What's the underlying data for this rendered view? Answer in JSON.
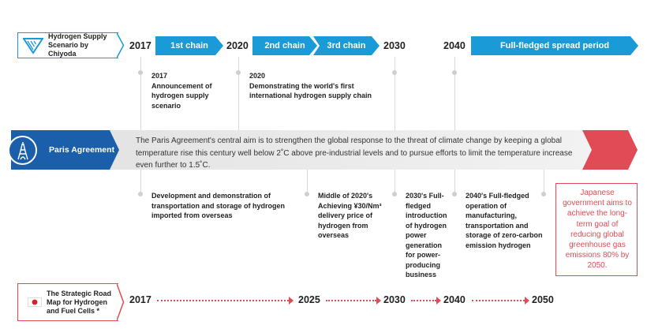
{
  "hydrogen_box": {
    "title": "Hydrogen Supply Scenario by Chiyoda"
  },
  "top_years": {
    "y2017": "2017",
    "y2020": "2020",
    "y2030": "2030",
    "y2040": "2040"
  },
  "chains": {
    "first": "1st chain",
    "second": "2nd chain",
    "third": "3rd chain",
    "spread": "Full-fledged spread period"
  },
  "top_notes": {
    "n2017": {
      "year": "2017",
      "text": "Announcement of hydrogen supply scenario"
    },
    "n2020": {
      "year": "2020",
      "text": "Demonstrating the world's first international hydrogen supply chain"
    }
  },
  "paris": {
    "label": "Paris Agreement",
    "text": "The Paris Agreement's central aim is to strengthen the global response to the threat of climate change by keeping a global temperature rise this century well below 2˚C above pre-industrial levels and to pursue efforts to limit the temperature increase even further to 1.5˚C."
  },
  "bottom_notes": {
    "dev": "Development and demonstration of transportation and storage of hydrogen imported from overseas",
    "mid2020": "Middle of 2020's Achieving ¥30/Nm³ delivery price of hydrogen from overseas",
    "y2030s": "2030's Full-fledged introduction of hydrogen power generation for power-producing business",
    "y2040s": "2040's Full-fledged operation of manufacturing, transportation and storage of zero-carbon emission hydrogen"
  },
  "japan_goal": "Japanese government aims to achieve the long-term goal of reducing global greenhouse gas emissions 80% by 2050.",
  "roadmap_box": {
    "title": "The Strategic Road Map for Hydrogen and Fuel Cells *"
  },
  "bottom_years": {
    "y2017": "2017",
    "y2025": "2025",
    "y2030": "2030",
    "y2040": "2040",
    "y2050": "2050"
  },
  "colors": {
    "blue": "#1a9ad6",
    "dark_blue": "#1b5faa",
    "red": "#e04b55"
  },
  "icons": [
    "chiyoda-logo-icon",
    "eiffel-tower-icon",
    "japan-flag-icon"
  ]
}
